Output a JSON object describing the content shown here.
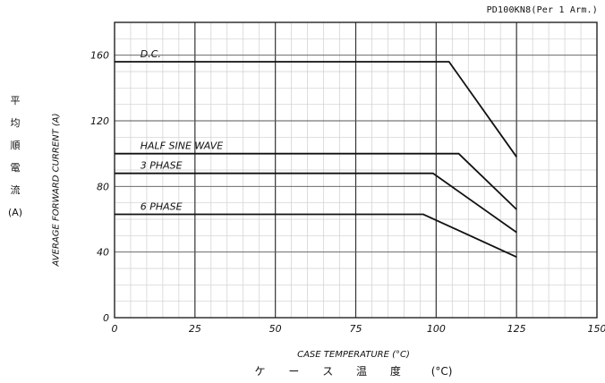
{
  "chart_data": {
    "type": "line",
    "part_number": "PD100KN8(Per 1 Arm.)",
    "xlabel": "CASE TEMPERATURE (°C)",
    "xlabel_jp": [
      "ケ",
      "ー",
      "ス",
      "温",
      "度",
      "(°C)"
    ],
    "ylabel": "AVERAGE FORWARD CURRENT (A)",
    "ylabel_jp": [
      "平",
      "均",
      "順",
      "電",
      "流",
      "(A)"
    ],
    "xlim": [
      0,
      150
    ],
    "ylim": [
      0,
      180
    ],
    "x_ticks": [
      0,
      25,
      50,
      75,
      100,
      125,
      150
    ],
    "y_ticks": [
      0,
      40,
      80,
      120,
      160
    ],
    "grid": true,
    "series": [
      {
        "name": "D.C.",
        "x": [
          0,
          104,
          125
        ],
        "y": [
          156,
          156,
          98
        ]
      },
      {
        "name": "HALF SINE WAVE",
        "x": [
          0,
          107,
          125
        ],
        "y": [
          100,
          100,
          66
        ]
      },
      {
        "name": "3 PHASE",
        "x": [
          0,
          99,
          125
        ],
        "y": [
          88,
          88,
          52
        ]
      },
      {
        "name": "6 PHASE",
        "x": [
          0,
          96,
          125
        ],
        "y": [
          63,
          63,
          37
        ]
      }
    ]
  }
}
